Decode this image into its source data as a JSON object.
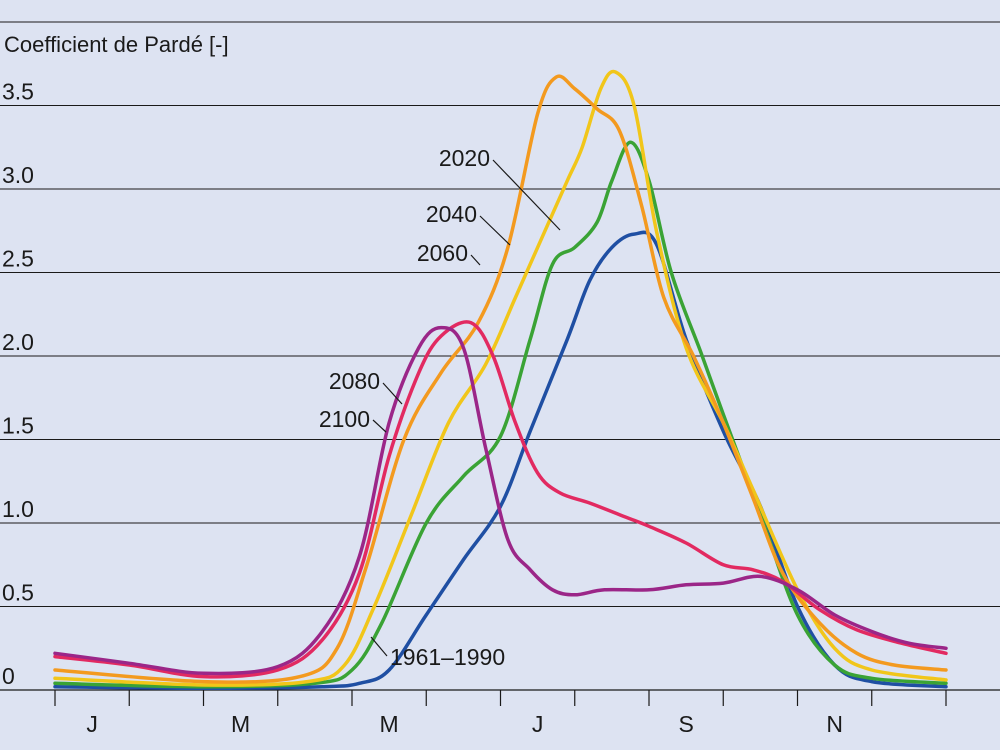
{
  "chart_data": {
    "type": "line",
    "title": "",
    "ylabel": "Coefficient de Pardé [-]",
    "xlabel": "",
    "ylim": [
      0,
      4.0
    ],
    "yticks": [
      0,
      0.5,
      1.0,
      1.5,
      2.0,
      2.5,
      3.0,
      3.5
    ],
    "ytick_labels": [
      "0",
      "0.5",
      "1.0",
      "1.5",
      "2.0",
      "2.5",
      "3.0",
      "3.5"
    ],
    "months": 12,
    "month_labels": [
      {
        "month": 1,
        "label": "J"
      },
      {
        "month": 3,
        "label": "M"
      },
      {
        "month": 5,
        "label": "M"
      },
      {
        "month": 7,
        "label": "J"
      },
      {
        "month": 9,
        "label": "S"
      },
      {
        "month": 11,
        "label": "N"
      }
    ],
    "grid": true,
    "series": [
      {
        "name": "1961–1990",
        "color": "#1f4fa3",
        "x": [
          0,
          2,
          3.6,
          4.1,
          4.5,
          5,
          5.5,
          6,
          6.4,
          6.9,
          7.2,
          7.5,
          7.8,
          8.1,
          8.5,
          9,
          9.5,
          10,
          10.5,
          11,
          12
        ],
        "y": [
          0.02,
          0.01,
          0.02,
          0.04,
          0.12,
          0.45,
          0.78,
          1.1,
          1.55,
          2.1,
          2.45,
          2.65,
          2.73,
          2.67,
          2.1,
          1.55,
          1.1,
          0.5,
          0.15,
          0.05,
          0.02
        ]
      },
      {
        "name": "2060",
        "color": "#3aa335",
        "x": [
          0,
          2,
          3.5,
          4,
          4.4,
          5,
          5.5,
          6,
          6.4,
          6.7,
          7,
          7.3,
          7.5,
          7.75,
          8,
          8.3,
          8.7,
          9,
          9.5,
          10,
          10.5,
          11,
          12
        ],
        "y": [
          0.04,
          0.02,
          0.04,
          0.12,
          0.4,
          1.0,
          1.28,
          1.52,
          2.1,
          2.55,
          2.65,
          2.8,
          3.05,
          3.28,
          3.05,
          2.5,
          2.02,
          1.65,
          1.05,
          0.45,
          0.15,
          0.07,
          0.04
        ]
      },
      {
        "name": "2040",
        "color": "#f1c61a",
        "x": [
          0,
          2,
          3.4,
          3.9,
          4.3,
          4.8,
          5.3,
          5.8,
          6.2,
          6.6,
          6.9,
          7.1,
          7.35,
          7.55,
          7.8,
          8.1,
          8.5,
          9,
          9.4,
          10,
          10.5,
          11,
          12
        ],
        "y": [
          0.07,
          0.03,
          0.05,
          0.15,
          0.5,
          1.05,
          1.6,
          1.95,
          2.35,
          2.75,
          3.05,
          3.25,
          3.6,
          3.7,
          3.5,
          2.75,
          2.05,
          1.6,
          1.2,
          0.6,
          0.25,
          0.12,
          0.06
        ]
      },
      {
        "name": "2020",
        "color": "#f39a1f",
        "x": [
          0,
          2,
          3.3,
          3.8,
          4.2,
          4.7,
          5.2,
          5.7,
          6.1,
          6.5,
          6.75,
          7,
          7.3,
          7.6,
          7.9,
          8.2,
          8.6,
          9,
          9.4,
          9.8,
          10.3,
          10.8,
          11.3,
          12
        ],
        "y": [
          0.12,
          0.05,
          0.08,
          0.25,
          0.75,
          1.5,
          1.9,
          2.2,
          2.65,
          3.45,
          3.67,
          3.6,
          3.48,
          3.35,
          2.9,
          2.35,
          2.0,
          1.6,
          1.15,
          0.7,
          0.4,
          0.22,
          0.15,
          0.12
        ]
      },
      {
        "name": "2100",
        "color": "#e22a61",
        "x": [
          0,
          1,
          2,
          3,
          3.6,
          4.1,
          4.5,
          4.9,
          5.2,
          5.6,
          5.9,
          6.2,
          6.5,
          6.8,
          7.2,
          7.6,
          8,
          8.5,
          9,
          9.4,
          9.8,
          10.3,
          10.8,
          11.4,
          12
        ],
        "y": [
          0.2,
          0.15,
          0.08,
          0.12,
          0.3,
          0.7,
          1.4,
          1.9,
          2.12,
          2.2,
          2.0,
          1.6,
          1.3,
          1.18,
          1.12,
          1.05,
          0.98,
          0.88,
          0.75,
          0.72,
          0.65,
          0.48,
          0.36,
          0.28,
          0.22
        ]
      },
      {
        "name": "2080",
        "color": "#9b2688",
        "x": [
          0,
          1,
          2,
          3,
          3.6,
          4.1,
          4.5,
          4.9,
          5.2,
          5.5,
          5.8,
          6.1,
          6.4,
          6.7,
          7,
          7.4,
          8,
          8.5,
          9,
          9.5,
          10,
          10.5,
          11,
          11.5,
          12
        ],
        "y": [
          0.22,
          0.16,
          0.1,
          0.14,
          0.35,
          0.8,
          1.6,
          2.05,
          2.17,
          2.05,
          1.45,
          0.9,
          0.72,
          0.6,
          0.57,
          0.6,
          0.6,
          0.63,
          0.64,
          0.68,
          0.6,
          0.45,
          0.35,
          0.28,
          0.25
        ]
      }
    ],
    "annotations": [
      {
        "text": "2020",
        "series": "2020"
      },
      {
        "text": "2040",
        "series": "2040"
      },
      {
        "text": "2060",
        "series": "2060"
      },
      {
        "text": "2080",
        "series": "2080"
      },
      {
        "text": "2100",
        "series": "2100"
      },
      {
        "text": "1961–1990",
        "series": "1961–1990"
      }
    ]
  }
}
